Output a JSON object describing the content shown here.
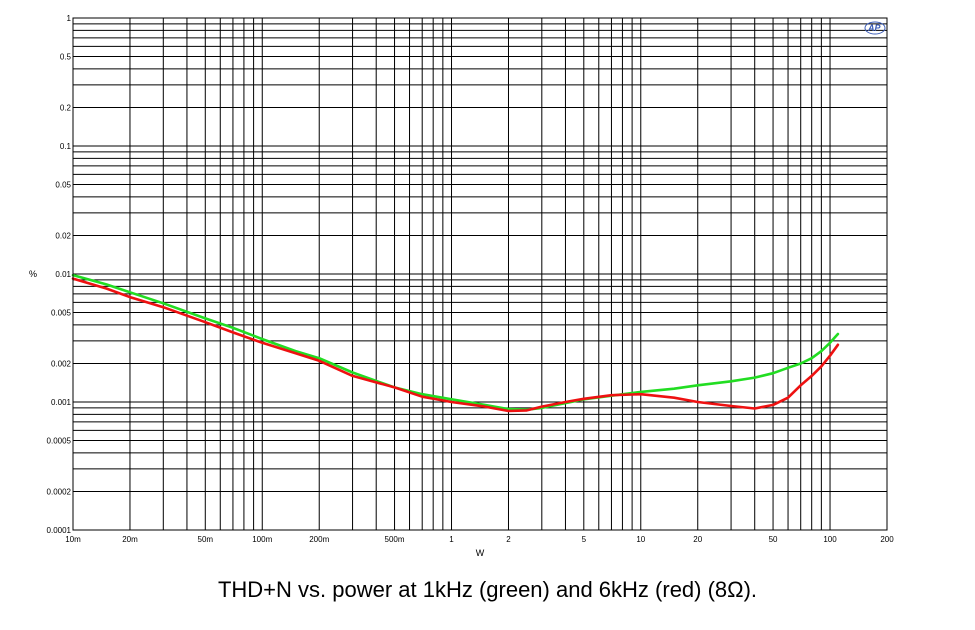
{
  "chart_data": {
    "type": "line",
    "title": "",
    "caption": "THD+N vs. power at 1kHz (green) and 6kHz (red) (8Ω).",
    "xlabel": "W",
    "ylabel": "%",
    "x_scale": "log",
    "y_scale": "log",
    "xlim": [
      0.01,
      200
    ],
    "ylim": [
      0.0001,
      1
    ],
    "grid": true,
    "legend": "none",
    "x_ticks": [
      {
        "value": 0.01,
        "label": "10m"
      },
      {
        "value": 0.02,
        "label": "20m"
      },
      {
        "value": 0.05,
        "label": "50m"
      },
      {
        "value": 0.1,
        "label": "100m"
      },
      {
        "value": 0.2,
        "label": "200m"
      },
      {
        "value": 0.5,
        "label": "500m"
      },
      {
        "value": 1,
        "label": "1"
      },
      {
        "value": 2,
        "label": "2"
      },
      {
        "value": 5,
        "label": "5"
      },
      {
        "value": 10,
        "label": "10"
      },
      {
        "value": 20,
        "label": "20"
      },
      {
        "value": 50,
        "label": "50"
      },
      {
        "value": 100,
        "label": "100"
      },
      {
        "value": 200,
        "label": "200"
      }
    ],
    "y_ticks": [
      {
        "value": 1,
        "label": "1"
      },
      {
        "value": 0.5,
        "label": "0.5"
      },
      {
        "value": 0.2,
        "label": "0.2"
      },
      {
        "value": 0.1,
        "label": "0.1"
      },
      {
        "value": 0.05,
        "label": "0.05"
      },
      {
        "value": 0.02,
        "label": "0.02"
      },
      {
        "value": 0.01,
        "label": "0.01"
      },
      {
        "value": 0.005,
        "label": "0.005"
      },
      {
        "value": 0.002,
        "label": "0.002"
      },
      {
        "value": 0.001,
        "label": "0.001"
      },
      {
        "value": 0.0005,
        "label": "0.0005"
      },
      {
        "value": 0.0002,
        "label": "0.0002"
      },
      {
        "value": 0.0001,
        "label": "0.0001"
      }
    ],
    "series": [
      {
        "color": "#22dd22",
        "x": [
          0.01,
          0.015,
          0.02,
          0.03,
          0.05,
          0.07,
          0.1,
          0.15,
          0.2,
          0.3,
          0.5,
          0.7,
          1.0,
          1.5,
          2.0,
          2.5,
          3.0,
          4.0,
          5.0,
          7.0,
          10,
          15,
          20,
          30,
          40,
          50,
          60,
          70,
          80,
          90,
          100,
          110
        ],
        "y": [
          0.0098,
          0.0083,
          0.0072,
          0.0059,
          0.0045,
          0.0038,
          0.0031,
          0.0025,
          0.0022,
          0.0017,
          0.0013,
          0.00115,
          0.00105,
          0.00095,
          0.00088,
          0.00087,
          0.0009,
          0.00098,
          0.00105,
          0.00112,
          0.0012,
          0.00127,
          0.00135,
          0.00145,
          0.00155,
          0.00168,
          0.00185,
          0.002,
          0.0022,
          0.0025,
          0.0029,
          0.0034
        ]
      },
      {
        "color": "#ee1111",
        "x": [
          0.01,
          0.015,
          0.02,
          0.03,
          0.05,
          0.07,
          0.1,
          0.15,
          0.2,
          0.3,
          0.5,
          0.7,
          1.0,
          1.5,
          2.0,
          2.5,
          3.0,
          4.0,
          5.0,
          7.0,
          10,
          15,
          20,
          30,
          40,
          50,
          60,
          70,
          80,
          90,
          100,
          110
        ],
        "y": [
          0.0092,
          0.0077,
          0.0066,
          0.0055,
          0.0042,
          0.0035,
          0.0029,
          0.0024,
          0.0021,
          0.0016,
          0.0013,
          0.0011,
          0.001,
          0.00092,
          0.00085,
          0.00086,
          0.00092,
          0.001,
          0.00106,
          0.00113,
          0.00115,
          0.00108,
          0.001,
          0.00093,
          0.00089,
          0.00095,
          0.00108,
          0.00135,
          0.0016,
          0.0019,
          0.0023,
          0.0028
        ]
      }
    ]
  },
  "logo_text": "AP"
}
